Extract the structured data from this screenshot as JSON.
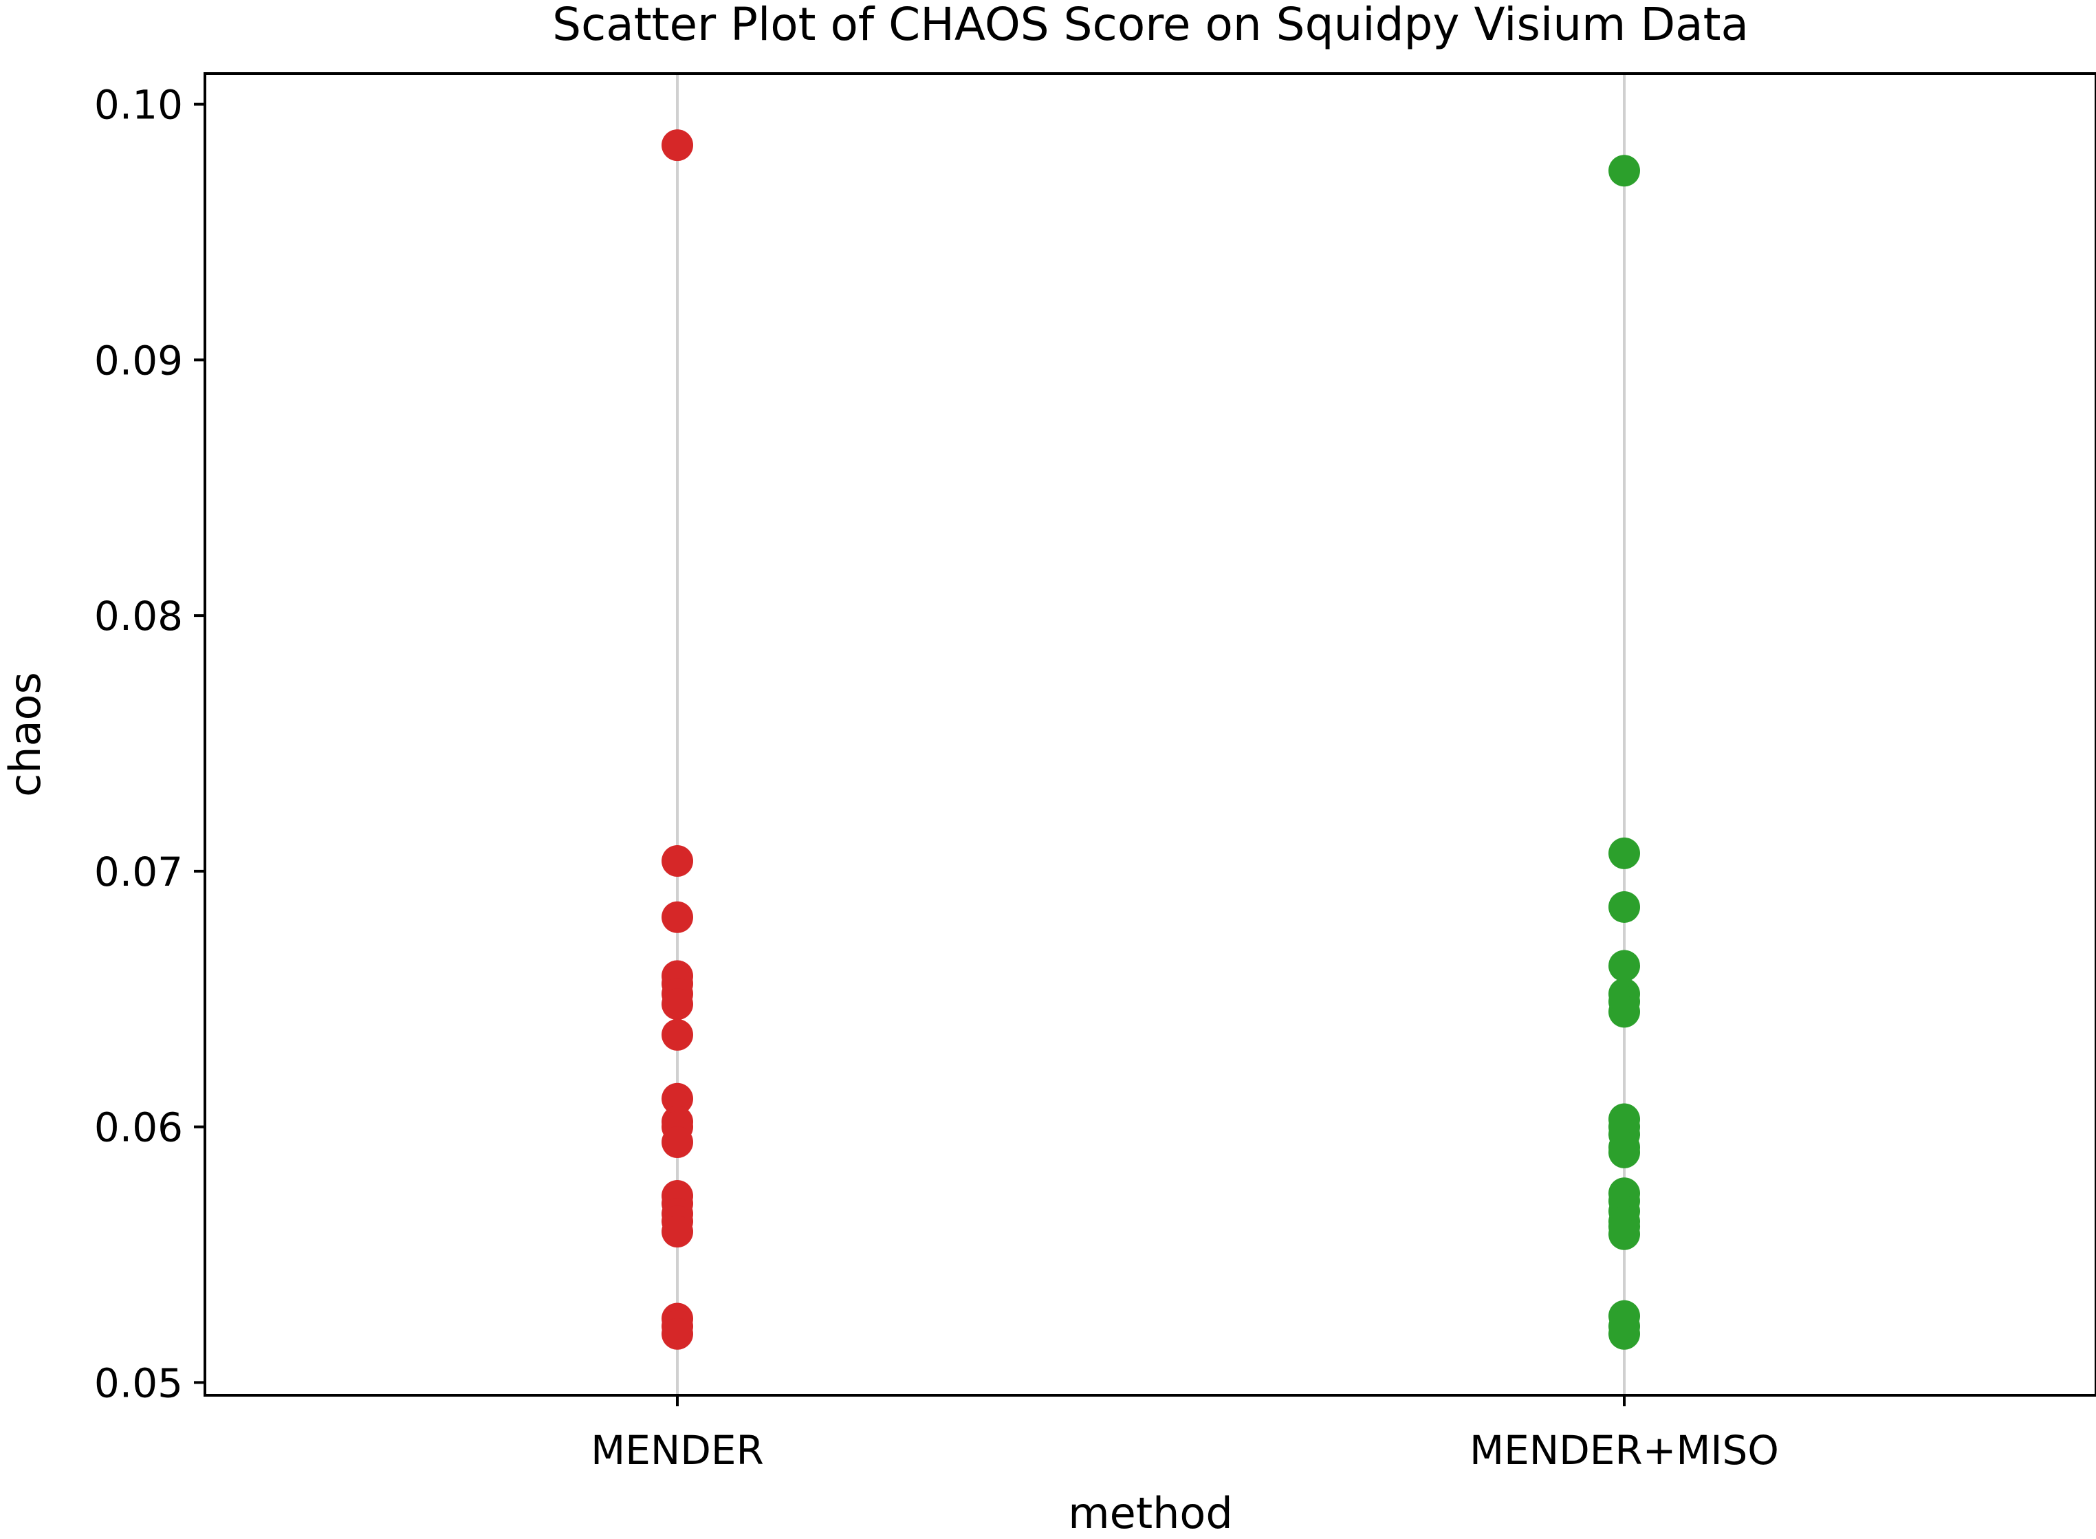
{
  "chart_data": {
    "type": "scatter",
    "title": "Scatter Plot of CHAOS Score on Squidpy Visium Data",
    "xlabel": "method",
    "ylabel": "chaos",
    "categories": [
      "MENDER",
      "MENDER+MISO"
    ],
    "yticks": [
      "0.05",
      "0.06",
      "0.07",
      "0.08",
      "0.09",
      "0.10"
    ],
    "ylim": [
      0.0495,
      0.1012
    ],
    "grid": "vertical lines at categories",
    "legend": "none",
    "series": [
      {
        "category": "MENDER",
        "color": "#d62728",
        "values": [
          0.0984,
          0.0704,
          0.0682,
          0.0659,
          0.0656,
          0.0652,
          0.0648,
          0.0636,
          0.0611,
          0.0602,
          0.06,
          0.0594,
          0.0573,
          0.057,
          0.0566,
          0.0563,
          0.0559,
          0.0525,
          0.0522,
          0.0519
        ]
      },
      {
        "category": "MENDER+MISO",
        "color": "#2ca02c",
        "values": [
          0.0974,
          0.0707,
          0.0686,
          0.0663,
          0.0652,
          0.0649,
          0.0645,
          0.0603,
          0.06,
          0.0597,
          0.0592,
          0.059,
          0.0574,
          0.0571,
          0.0567,
          0.0563,
          0.0561,
          0.0558,
          0.0526,
          0.0522,
          0.0519
        ]
      }
    ]
  }
}
